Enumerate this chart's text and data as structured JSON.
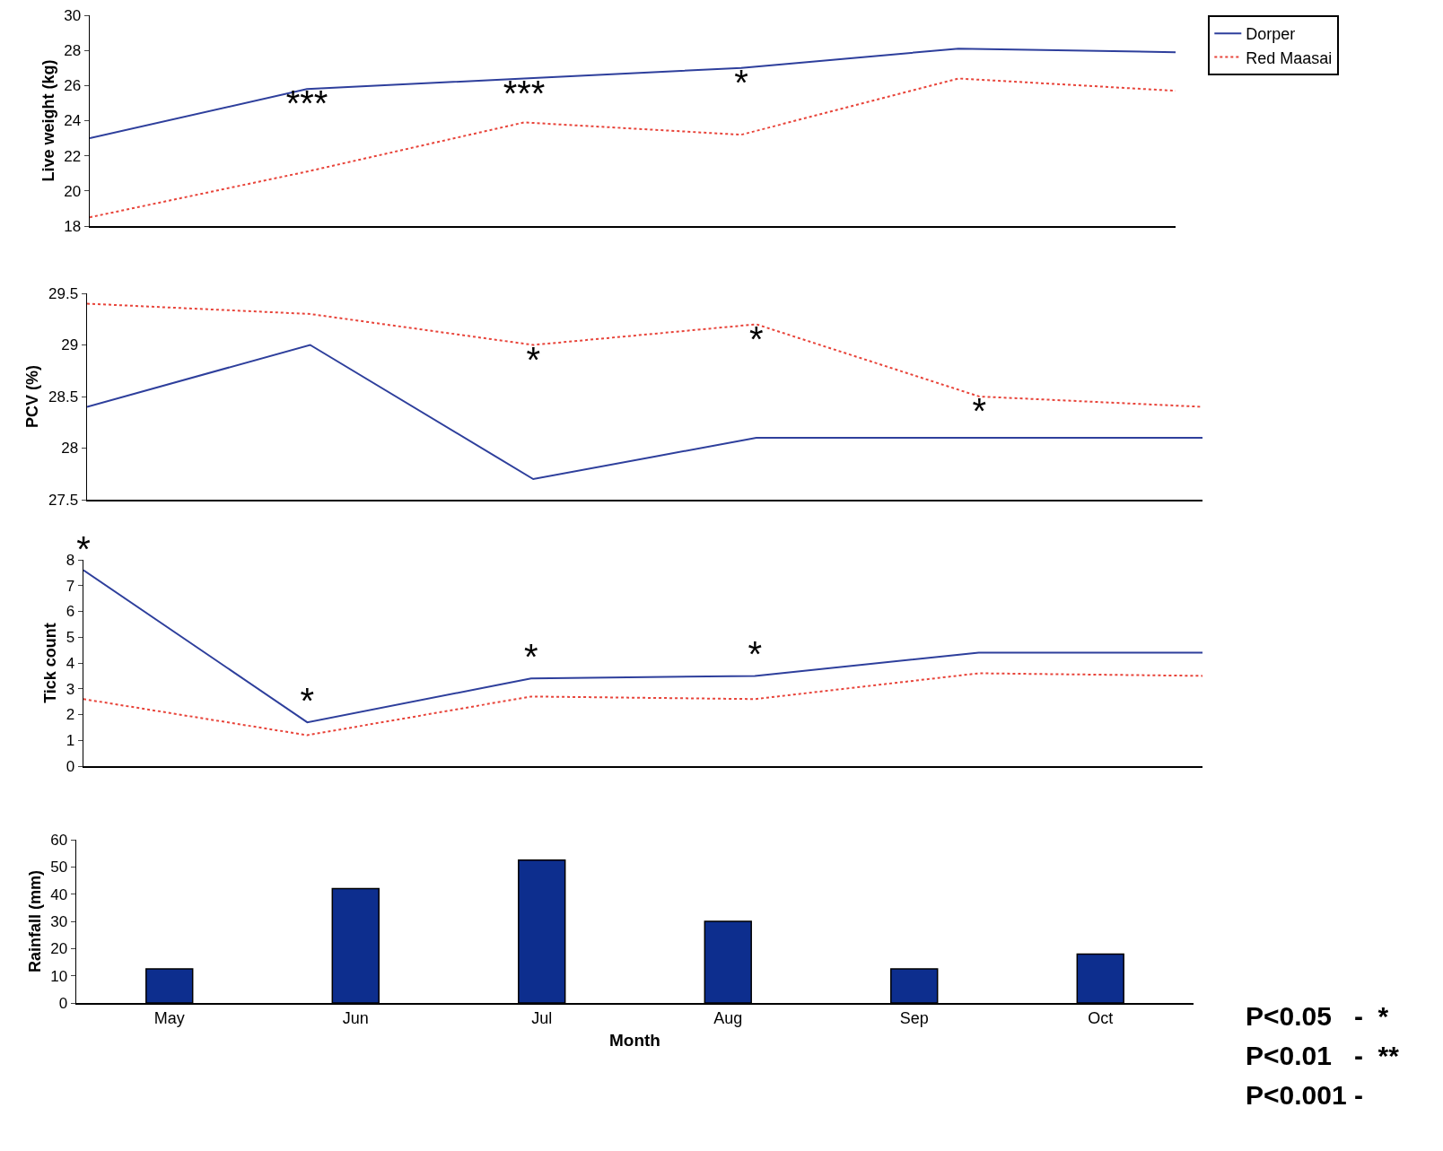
{
  "chart_data": [
    {
      "type": "line",
      "ylabel": "Live weight (kg)",
      "categories": [
        null,
        null,
        null,
        null,
        null,
        null
      ],
      "tick_labels": "y",
      "ylim": [
        18,
        30
      ],
      "yticks": [
        18,
        20,
        22,
        24,
        26,
        28,
        30
      ],
      "legend": "top right",
      "series": [
        {
          "name": "Dorper",
          "color": "#2e3f9c",
          "line_style": "solid",
          "values": [
            23.0,
            25.8,
            26.4,
            27.0,
            28.1,
            27.9
          ],
          "value_labels": [
            null,
            "***",
            "***",
            "*",
            null,
            null
          ]
        },
        {
          "name": "Red Maasai",
          "color": "#e8443a",
          "line_style": "dotted",
          "values": [
            18.5,
            21.1,
            23.9,
            23.2,
            26.4,
            25.7
          ]
        }
      ]
    },
    {
      "type": "line",
      "ylabel": "PCV (%)",
      "categories": [
        null,
        null,
        null,
        null,
        null,
        null
      ],
      "tick_labels": "y",
      "ylim": [
        27.5,
        29.5
      ],
      "yticks": [
        27.5,
        28,
        28.5,
        29,
        29.5
      ],
      "series": [
        {
          "color": "#2e3f9c",
          "line_style": "solid",
          "values": [
            28.4,
            29.0,
            27.7,
            28.1,
            28.1,
            28.1
          ]
        },
        {
          "color": "#e8443a",
          "line_style": "dotted",
          "values": [
            29.4,
            29.3,
            29.0,
            29.2,
            28.5,
            28.4
          ],
          "value_labels": [
            null,
            null,
            "*",
            "*",
            "*",
            null
          ]
        }
      ]
    },
    {
      "type": "line",
      "ylabel": "Tick count",
      "categories": [
        null,
        null,
        null,
        null,
        null,
        null
      ],
      "tick_labels": "y",
      "ylim": [
        0,
        8
      ],
      "yticks": [
        0,
        1,
        2,
        3,
        4,
        5,
        6,
        7,
        8
      ],
      "series": [
        {
          "color": "#2e3f9c",
          "line_style": "solid",
          "values": [
            7.6,
            1.7,
            3.4,
            3.5,
            4.4,
            4.4
          ],
          "value_labels": [
            "*",
            "*",
            "*",
            "*",
            null,
            null
          ]
        },
        {
          "color": "#e8443a",
          "line_style": "dotted",
          "values": [
            2.6,
            1.2,
            2.7,
            2.6,
            3.6,
            3.5
          ]
        }
      ]
    },
    {
      "type": "bar",
      "ylabel": "Rainfall (mm)",
      "xlabel": "Month",
      "categories": [
        "May",
        "Jun",
        "Jul",
        "Aug",
        "Sep",
        "Oct"
      ],
      "values": [
        12.5,
        42,
        52.5,
        30,
        12.5,
        18
      ],
      "color": "#0d2e8e",
      "ylim": [
        0,
        60
      ],
      "yticks": [
        0,
        10,
        20,
        30,
        40,
        50,
        60
      ],
      "annotations": [
        "P<0.05   -  *",
        "P<0.01   -  **",
        "P<0.001 -"
      ]
    }
  ]
}
